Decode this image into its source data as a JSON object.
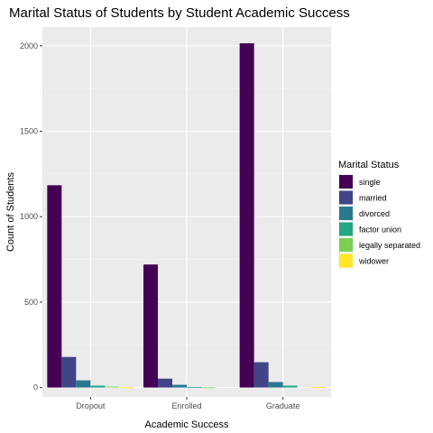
{
  "chart_data": {
    "type": "bar",
    "title": "Marital Status of Students by Student Academic Success",
    "xlabel": "Academic Success",
    "ylabel": "Count of Students",
    "categories": [
      "Dropout",
      "Enrolled",
      "Graduate"
    ],
    "yticks": [
      0,
      500,
      1000,
      1500,
      2000
    ],
    "ylim": [
      -55,
      2110
    ],
    "grid": true,
    "legend": {
      "title": "Marital Status",
      "placement": "right"
    },
    "series": [
      {
        "name": "single",
        "color": "#440154",
        "values": [
          1184,
          720,
          2015
        ]
      },
      {
        "name": "married",
        "color": "#414487",
        "values": [
          179,
          52,
          148
        ]
      },
      {
        "name": "divorced",
        "color": "#2A788E",
        "values": [
          42,
          16,
          32
        ]
      },
      {
        "name": "factor union",
        "color": "#22A884",
        "values": [
          11,
          3,
          11
        ]
      },
      {
        "name": "legally separated",
        "color": "#7AD151",
        "values": [
          5,
          1,
          0
        ]
      },
      {
        "name": "widower",
        "color": "#FDE725",
        "values": [
          1,
          0,
          3
        ]
      }
    ]
  }
}
